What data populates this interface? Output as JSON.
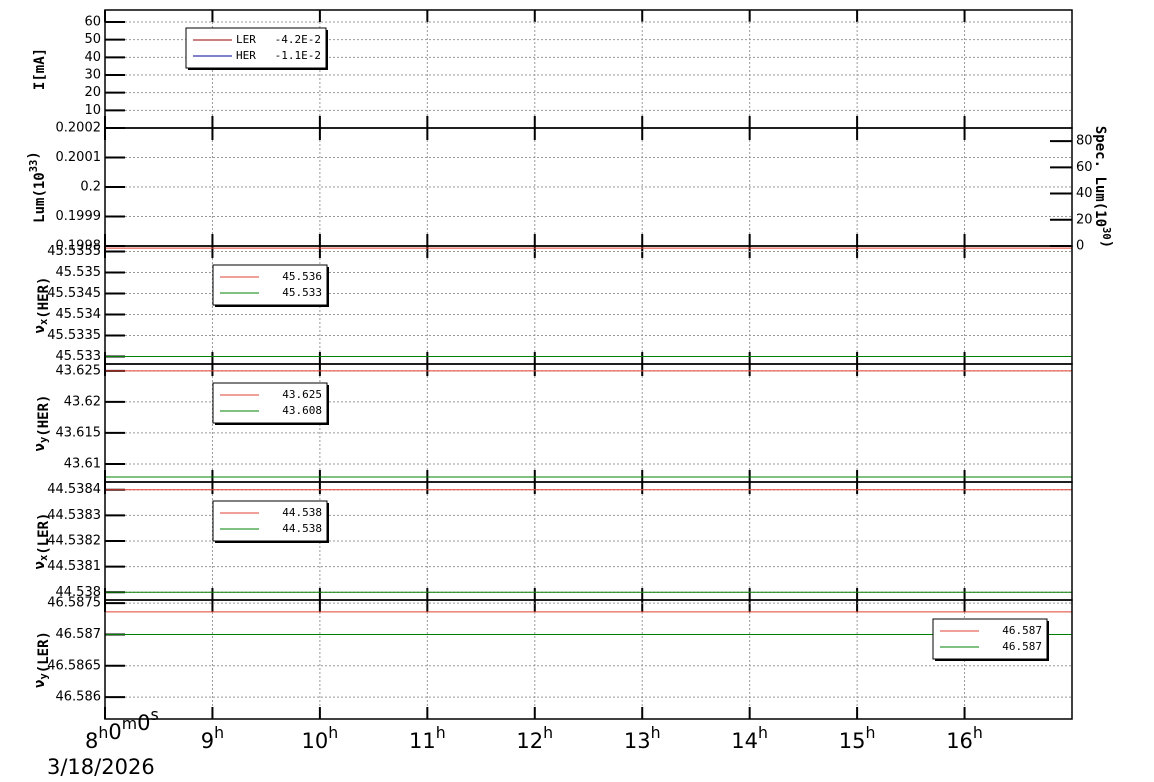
{
  "chart_data": {
    "type": "line",
    "xlim": [
      8,
      17
    ],
    "xticks": [
      {
        "value": 8,
        "label": [
          "8",
          {
            "sup": "h"
          },
          "0",
          {
            "sup": "m"
          },
          "0",
          {
            "sup": "s"
          }
        ]
      },
      {
        "value": 9,
        "label": [
          "9",
          {
            "sup": "h"
          }
        ]
      },
      {
        "value": 10,
        "label": [
          "10",
          {
            "sup": "h"
          }
        ]
      },
      {
        "value": 11,
        "label": [
          "11",
          {
            "sup": "h"
          }
        ]
      },
      {
        "value": 12,
        "label": [
          "12",
          {
            "sup": "h"
          }
        ]
      },
      {
        "value": 13,
        "label": [
          "13",
          {
            "sup": "h"
          }
        ]
      },
      {
        "value": 14,
        "label": [
          "14",
          {
            "sup": "h"
          }
        ]
      },
      {
        "value": 15,
        "label": [
          "15",
          {
            "sup": "h"
          }
        ]
      },
      {
        "value": 16,
        "label": [
          "16",
          {
            "sup": "h"
          }
        ]
      }
    ],
    "date": "3/18/2026",
    "grid": true,
    "panels": [
      {
        "ylabel": [
          "I[mA]"
        ],
        "ylim": [
          0,
          66.8
        ],
        "yticks": [
          10,
          20,
          30,
          40,
          50,
          60
        ],
        "legend": "upper-left",
        "series": [
          {
            "name": "LER",
            "color": "#990000",
            "value": -0.042,
            "value_label": "-4.2E-2"
          },
          {
            "name": "HER",
            "color": "#000099",
            "value": -0.011,
            "value_label": "-1.1E-2"
          }
        ]
      },
      {
        "ylabel": [
          "Lum(10",
          {
            "sup": "33"
          },
          ")"
        ],
        "ylim": [
          0.1998,
          0.2002
        ],
        "yticks": [
          0.1998,
          0.1999,
          0.2,
          0.2001,
          0.2002
        ],
        "y2label": [
          "Spec. Lum(10",
          {
            "sup": "30"
          },
          ")"
        ],
        "y2lim": [
          0,
          90
        ],
        "y2ticks": [
          0,
          20,
          40,
          60,
          80
        ],
        "series": []
      },
      {
        "ylabel": [
          "ν",
          {
            "sub": "x"
          },
          "(HER)"
        ],
        "ylim": [
          45.53282,
          45.53563
        ],
        "yticks": [
          45.533,
          45.5335,
          45.534,
          45.5345,
          45.535,
          45.5355
        ],
        "legend": "upper-left",
        "series": [
          {
            "color": "#e04030",
            "value": 45.53558,
            "value_label": "45.536"
          },
          {
            "color": "#008000",
            "value": 45.533,
            "value_label": "45.533"
          }
        ]
      },
      {
        "ylabel": [
          "ν",
          {
            "sub": "y"
          },
          "(HER)"
        ],
        "ylim": [
          43.6071,
          43.6261
        ],
        "yticks": [
          43.61,
          43.615,
          43.62,
          43.625
        ],
        "legend": "upper-left",
        "series": [
          {
            "color": "#e04030",
            "value": 43.625,
            "value_label": "43.625"
          },
          {
            "color": "#008000",
            "value": 43.6079,
            "value_label": "43.608"
          }
        ]
      },
      {
        "ylabel": [
          "ν",
          {
            "sub": "x"
          },
          "(LER)"
        ],
        "ylim": [
          44.53797,
          44.53843
        ],
        "yticks": [
          44.538,
          44.5381,
          44.5382,
          44.5383,
          44.5384
        ],
        "legend": "upper-left",
        "series": [
          {
            "color": "#e04030",
            "value": 44.5384,
            "value_label": "44.538"
          },
          {
            "color": "#008000",
            "value": 44.538,
            "value_label": "44.538"
          }
        ]
      },
      {
        "ylabel": [
          "ν",
          {
            "sub": "y"
          },
          "(LER)"
        ],
        "ylim": [
          46.58565,
          46.58755
        ],
        "yticks": [
          46.586,
          46.5865,
          46.587,
          46.5875
        ],
        "legend": "upper-right",
        "series": [
          {
            "color": "#e04030",
            "value": 46.58736,
            "value_label": "46.587"
          },
          {
            "color": "#008000",
            "value": 46.587,
            "value_label": "46.587"
          }
        ]
      }
    ]
  }
}
